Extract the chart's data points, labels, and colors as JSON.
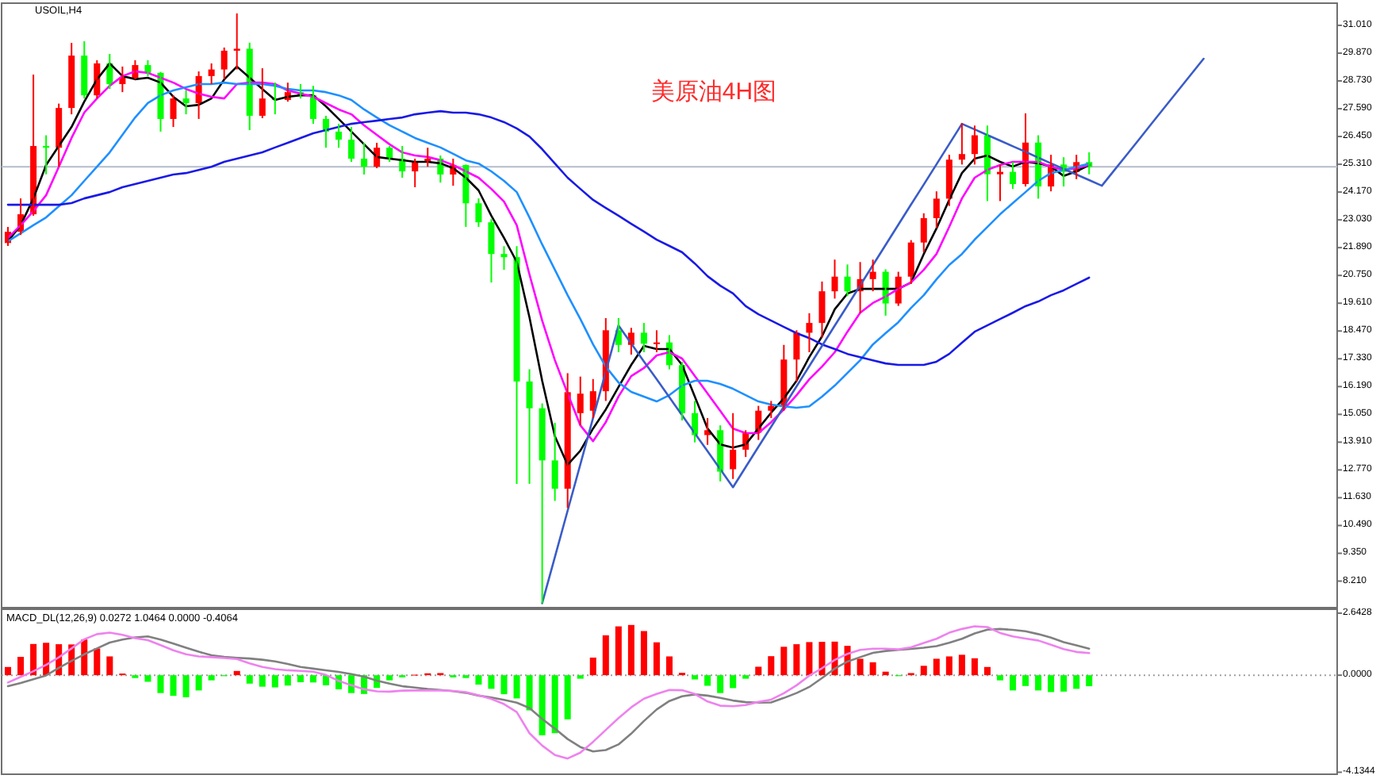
{
  "chart_data": [
    {
      "type": "candlestick",
      "title": "美原油4H图",
      "subtitle": "USOIL,H4",
      "categories": [
        null,
        null,
        null,
        null,
        null,
        null,
        null,
        null,
        null,
        null,
        null,
        null,
        null,
        null,
        null,
        null,
        null,
        null,
        null,
        null,
        null,
        null,
        null,
        null,
        null,
        null,
        null,
        null,
        null,
        null,
        null,
        null,
        null,
        null,
        null,
        null,
        null,
        null,
        null,
        null,
        null,
        null,
        null,
        null,
        null,
        null,
        null,
        null,
        null,
        null,
        null,
        null,
        null,
        null,
        null,
        null,
        null,
        null,
        null,
        null,
        null,
        null,
        null,
        null,
        null,
        null,
        null,
        null,
        null,
        null,
        null,
        null,
        null,
        null,
        null,
        null,
        null,
        null,
        null,
        null,
        null,
        null,
        null,
        null,
        null,
        null,
        null,
        null,
        null,
        null,
        null,
        null,
        null,
        null,
        null,
        null,
        null,
        null,
        null,
        null,
        null,
        null,
        null,
        null,
        null
      ],
      "ohlc": [
        [
          22.08,
          22.74,
          21.96,
          22.54
        ],
        [
          22.54,
          23.91,
          22.41,
          23.26
        ],
        [
          23.26,
          28.99,
          23.2,
          26.06
        ],
        [
          26.06,
          26.5,
          24.9,
          25.99
        ],
        [
          25.99,
          27.8,
          25.21,
          27.62
        ],
        [
          27.62,
          30.29,
          27.36,
          29.77
        ],
        [
          29.77,
          30.36,
          28.01,
          28.14
        ],
        [
          28.14,
          29.58,
          28.01,
          29.45
        ],
        [
          29.45,
          29.84,
          28.4,
          28.6
        ],
        [
          28.6,
          29.32,
          28.27,
          28.86
        ],
        [
          28.86,
          29.58,
          28.8,
          29.38
        ],
        [
          29.38,
          29.58,
          28.93,
          29.06
        ],
        [
          29.06,
          29.1,
          26.65,
          27.17
        ],
        [
          27.17,
          28.14,
          26.84,
          28.01
        ],
        [
          28.01,
          28.34,
          27.36,
          27.82
        ],
        [
          27.82,
          29.12,
          27.17,
          28.93
        ],
        [
          28.93,
          29.45,
          28.6,
          29.2
        ],
        [
          29.2,
          30.1,
          28.8,
          29.97
        ],
        [
          29.97,
          31.5,
          29.2,
          30.05
        ],
        [
          30.05,
          30.3,
          26.71,
          27.3
        ],
        [
          27.3,
          29.25,
          27.2,
          28.01
        ],
        [
          28.01,
          28.66,
          27.36,
          27.95
        ],
        [
          27.95,
          28.66,
          27.88,
          28.27
        ],
        [
          28.27,
          28.6,
          28.01,
          28.14
        ],
        [
          28.14,
          28.53,
          26.97,
          27.17
        ],
        [
          27.17,
          27.3,
          25.99,
          26.65
        ],
        [
          26.65,
          26.97,
          25.99,
          26.32
        ],
        [
          26.32,
          26.84,
          25.41,
          25.54
        ],
        [
          25.54,
          26.19,
          24.89,
          25.21
        ],
        [
          25.21,
          26.19,
          25.15,
          25.99
        ],
        [
          25.99,
          26.06,
          25.41,
          25.54
        ],
        [
          25.54,
          26.06,
          24.76,
          25.02
        ],
        [
          25.02,
          25.54,
          24.37,
          25.41
        ],
        [
          25.41,
          25.99,
          25.21,
          25.54
        ],
        [
          25.54,
          25.67,
          24.56,
          24.89
        ],
        [
          24.89,
          25.54,
          24.43,
          25.28
        ],
        [
          25.28,
          25.3,
          22.74,
          23.71
        ],
        [
          23.71,
          23.91,
          22.74,
          22.93
        ],
        [
          22.93,
          23.06,
          20.46,
          21.63
        ],
        [
          21.63,
          21.95,
          20.98,
          21.5
        ],
        [
          21.5,
          21.95,
          12.2,
          16.4
        ],
        [
          16.4,
          16.9,
          12.2,
          15.3
        ],
        [
          15.3,
          15.5,
          7.3,
          13.16
        ],
        [
          13.16,
          14.7,
          11.5,
          12.0
        ],
        [
          12.0,
          16.74,
          11.21,
          15.96
        ],
        [
          15.1,
          16.6,
          14.6,
          15.9
        ],
        [
          15.2,
          16.5,
          14.9,
          16.0
        ],
        [
          16.0,
          19.0,
          15.6,
          18.5
        ],
        [
          18.5,
          19.0,
          17.6,
          17.9
        ],
        [
          17.9,
          18.6,
          17.5,
          18.4
        ],
        [
          18.4,
          18.8,
          17.6,
          17.95
        ],
        [
          17.95,
          18.5,
          17.6,
          18.0
        ],
        [
          18.0,
          18.3,
          16.9,
          17.07
        ],
        [
          17.07,
          17.2,
          14.8,
          15.1
        ],
        [
          15.1,
          15.6,
          13.9,
          14.2
        ],
        [
          14.2,
          14.9,
          13.8,
          14.4
        ],
        [
          14.4,
          14.6,
          12.3,
          12.7
        ],
        [
          12.8,
          15.1,
          12.4,
          13.6
        ],
        [
          13.6,
          14.4,
          13.3,
          14.3
        ],
        [
          14.3,
          15.4,
          14.0,
          15.2
        ],
        [
          15.2,
          15.6,
          14.9,
          15.4
        ],
        [
          15.4,
          17.9,
          15.2,
          17.3
        ],
        [
          17.3,
          18.5,
          16.4,
          18.4
        ],
        [
          18.4,
          19.2,
          17.6,
          18.8
        ],
        [
          18.8,
          20.5,
          18.2,
          20.1
        ],
        [
          20.1,
          21.4,
          19.8,
          20.7
        ],
        [
          20.7,
          21.2,
          19.9,
          20.1
        ],
        [
          20.1,
          21.3,
          19.2,
          20.6
        ],
        [
          20.6,
          21.4,
          20.1,
          20.9
        ],
        [
          20.9,
          21.0,
          19.1,
          19.6
        ],
        [
          19.6,
          20.9,
          19.5,
          20.7
        ],
        [
          20.7,
          22.2,
          20.4,
          22.1
        ],
        [
          22.1,
          23.3,
          21.7,
          23.1
        ],
        [
          23.1,
          24.2,
          22.7,
          23.9
        ],
        [
          23.9,
          25.7,
          23.6,
          25.5
        ],
        [
          25.5,
          27.0,
          25.3,
          25.73
        ],
        [
          25.73,
          26.9,
          25.3,
          26.5
        ],
        [
          26.5,
          26.9,
          23.8,
          24.9
        ],
        [
          24.9,
          25.3,
          23.8,
          25.0
        ],
        [
          25.0,
          25.4,
          24.3,
          24.5
        ],
        [
          24.5,
          27.4,
          24.4,
          26.2
        ],
        [
          26.2,
          26.5,
          23.9,
          24.4
        ],
        [
          24.4,
          25.7,
          24.2,
          25.3
        ],
        [
          25.3,
          25.6,
          24.4,
          25.0
        ],
        [
          25.0,
          25.7,
          24.7,
          25.4
        ],
        [
          25.4,
          25.8,
          24.9,
          25.2
        ],
        null,
        null,
        null,
        null,
        null,
        null,
        null,
        null,
        null,
        null,
        null,
        null,
        null,
        null,
        null,
        null,
        null,
        null,
        null
      ],
      "colors": [
        "#ff0000",
        "#ff0000",
        "#ff0000",
        "#00ff00",
        "#ff0000",
        "#ff0000",
        "#00ff00",
        "#ff0000",
        "#00ff00",
        "#ff0000",
        "#ff0000",
        "#00ff00",
        "#00ff00",
        "#ff0000",
        "#00ff00",
        "#ff0000",
        "#ff0000",
        "#ff0000",
        "#ff0000",
        "#00ff00",
        "#ff0000",
        "#00ff00",
        "#ff0000",
        "#00ff00",
        "#00ff00",
        "#00ff00",
        "#00ff00",
        "#00ff00",
        "#00ff00",
        "#ff0000",
        "#00ff00",
        "#00ff00",
        "#ff0000",
        "#ff0000",
        "#00ff00",
        "#ff0000",
        "#00ff00",
        "#00ff00",
        "#00ff00",
        "#00ff00",
        "#00ff00",
        "#00ff00",
        "#00ff00",
        "#00ff00",
        "#ff0000",
        "#ff0000",
        "#ff0000",
        "#ff0000",
        "#00ff00",
        "#ff0000",
        "#00ff00",
        "#ff0000",
        "#00ff00",
        "#00ff00",
        "#00ff00",
        "#ff0000",
        "#00ff00",
        "#ff0000",
        "#ff0000",
        "#ff0000",
        "#ff0000",
        "#ff0000",
        "#ff0000",
        "#ff0000",
        "#ff0000",
        "#ff0000",
        "#00ff00",
        "#ff0000",
        "#ff0000",
        "#00ff00",
        "#ff0000",
        "#ff0000",
        "#ff0000",
        "#ff0000",
        "#ff0000",
        "#ff0000",
        "#ff0000",
        "#00ff00",
        "#ff0000",
        "#00ff00",
        "#ff0000",
        "#00ff00",
        "#ff0000",
        "#00ff00",
        "#ff0000",
        "#00ff00",
        null,
        null,
        null,
        null,
        null,
        null,
        null,
        null,
        null,
        null,
        null,
        null,
        null,
        null,
        null,
        null,
        null,
        null,
        null
      ],
      "series": [
        {
          "type": "line",
          "color": "#000000",
          "values": [
            22.15,
            22.81,
            23.91,
            25.28,
            26.06,
            26.84,
            27.88,
            28.79,
            29.45,
            28.93,
            28.8,
            28.86,
            28.66,
            28.08,
            27.69,
            27.75,
            28.01,
            28.79,
            29.32,
            28.86,
            28.4,
            27.95,
            28.08,
            28.14,
            28.14,
            27.69,
            27.17,
            26.65,
            26.13,
            25.61,
            25.54,
            25.48,
            25.41,
            25.41,
            25.35,
            25.15,
            24.76,
            24.24,
            23.2,
            22.29,
            21.31,
            19.03,
            16.43,
            14.15,
            12.98,
            13.56,
            14.47,
            15.25,
            16.17,
            17.08,
            17.86,
            17.73,
            17.73,
            17.08,
            15.78,
            14.47,
            13.82,
            13.69,
            13.82,
            14.47,
            15.12,
            15.71,
            16.43,
            17.4,
            18.25,
            19.36,
            20.01,
            20.2,
            20.2,
            20.2,
            20.2,
            20.46,
            21.63,
            22.68,
            23.85,
            24.95,
            25.54,
            25.67,
            25.41,
            25.22,
            25.41,
            25.35,
            25.22,
            24.83,
            25.02,
            25.28,
            null,
            null,
            null,
            null,
            null,
            null,
            null,
            null,
            null,
            null,
            null,
            null,
            null,
            null,
            null,
            null,
            null,
            null,
            null
          ]
        },
        {
          "type": "line",
          "color": "#ff00ff",
          "values": [
            22.29,
            22.81,
            23.39,
            24.04,
            25.21,
            26.39,
            27.43,
            28.01,
            28.53,
            28.93,
            29.12,
            29.06,
            28.86,
            28.66,
            28.4,
            28.21,
            28.08,
            28.01,
            28.6,
            28.66,
            28.66,
            28.6,
            28.34,
            28.21,
            28.08,
            27.82,
            27.56,
            27.36,
            26.91,
            26.52,
            26.13,
            25.8,
            25.67,
            25.61,
            25.48,
            25.28,
            25.02,
            24.76,
            24.3,
            23.78,
            22.81,
            20.79,
            18.9,
            17.27,
            15.91,
            14.6,
            13.95,
            14.73,
            15.78,
            16.62,
            16.95,
            17.47,
            17.6,
            17.34,
            16.62,
            15.91,
            15.19,
            14.47,
            14.28,
            14.28,
            14.73,
            15.25,
            15.84,
            16.49,
            17.01,
            17.6,
            18.44,
            19.22,
            19.62,
            19.88,
            20.2,
            20.46,
            20.98,
            21.63,
            22.74,
            23.91,
            24.76,
            25.08,
            25.28,
            25.41,
            25.41,
            25.41,
            25.21,
            25.08,
            25.15,
            25.28,
            null,
            null,
            null,
            null,
            null,
            null,
            null,
            null,
            null,
            null,
            null,
            null,
            null,
            null,
            null,
            null,
            null,
            null,
            null
          ]
        },
        {
          "type": "line",
          "color": "#1e90ff",
          "values": [
            22.15,
            22.48,
            22.81,
            23.13,
            23.59,
            24.04,
            24.63,
            25.21,
            25.8,
            26.52,
            27.23,
            27.82,
            28.14,
            28.34,
            28.47,
            28.6,
            28.6,
            28.66,
            28.6,
            28.6,
            28.6,
            28.53,
            28.4,
            28.34,
            28.34,
            28.27,
            28.14,
            27.95,
            27.56,
            27.23,
            26.91,
            26.65,
            26.39,
            26.19,
            26.0,
            25.74,
            25.47,
            25.34,
            25.02,
            24.63,
            24.17,
            23.13,
            22.02,
            20.98,
            19.94,
            18.96,
            17.92,
            17.01,
            16.36,
            15.97,
            15.78,
            15.58,
            15.84,
            16.23,
            16.43,
            16.43,
            16.3,
            16.1,
            15.84,
            15.58,
            15.45,
            15.38,
            15.32,
            15.38,
            15.78,
            16.23,
            16.75,
            17.27,
            17.92,
            18.38,
            18.83,
            19.42,
            19.94,
            20.59,
            21.18,
            21.63,
            22.22,
            22.74,
            23.26,
            23.72,
            24.17,
            24.63,
            24.95,
            25.08,
            25.21,
            25.34,
            null,
            null,
            null,
            null,
            null,
            null,
            null,
            null,
            null,
            null,
            null,
            null,
            null,
            null,
            null,
            null,
            null,
            null,
            null
          ]
        },
        {
          "type": "line",
          "color": "#1a1ae6",
          "values": [
            23.65,
            23.65,
            23.65,
            23.65,
            23.65,
            23.72,
            23.91,
            24.04,
            24.17,
            24.37,
            24.5,
            24.63,
            24.76,
            24.89,
            24.95,
            25.08,
            25.21,
            25.41,
            25.54,
            25.67,
            25.8,
            26.0,
            26.19,
            26.39,
            26.58,
            26.71,
            26.84,
            26.97,
            27.04,
            27.1,
            27.17,
            27.23,
            27.36,
            27.43,
            27.49,
            27.43,
            27.43,
            27.36,
            27.23,
            27.04,
            26.78,
            26.45,
            25.93,
            25.34,
            24.76,
            24.3,
            23.85,
            23.52,
            23.2,
            22.87,
            22.55,
            22.22,
            21.96,
            21.7,
            21.24,
            20.72,
            20.33,
            20.01,
            19.49,
            19.16,
            18.9,
            18.64,
            18.38,
            18.18,
            17.92,
            17.73,
            17.53,
            17.4,
            17.27,
            17.14,
            17.08,
            17.08,
            17.08,
            17.21,
            17.53,
            17.99,
            18.44,
            18.7,
            18.96,
            19.22,
            19.49,
            19.68,
            19.94,
            20.14,
            20.4,
            20.66,
            null,
            null,
            null,
            null,
            null,
            null,
            null,
            null,
            null,
            null,
            null,
            null,
            null,
            null,
            null,
            null,
            null,
            null,
            null
          ]
        },
        {
          "type": "line",
          "color": "#3a5cc8",
          "values": [
            null,
            null,
            null,
            null,
            null,
            null,
            null,
            null,
            null,
            null,
            null,
            null,
            null,
            null,
            null,
            null,
            null,
            null,
            null,
            null,
            null,
            null,
            null,
            null,
            null,
            null,
            null,
            null,
            null,
            null,
            null,
            null,
            null,
            null,
            null,
            null,
            null,
            null,
            null,
            null,
            null,
            null,
            7.3,
            9.2,
            11.1,
            13.0,
            14.9,
            16.8,
            18.7,
            17.96,
            17.22,
            16.49,
            15.75,
            15.01,
            14.27,
            13.54,
            12.8,
            12.06,
            12.89,
            13.72,
            14.54,
            15.37,
            16.2,
            17.03,
            17.86,
            18.69,
            19.51,
            20.34,
            21.17,
            22.0,
            22.83,
            23.66,
            24.48,
            25.31,
            26.14,
            26.97,
            26.74,
            26.51,
            26.28,
            26.05,
            25.82,
            25.58,
            25.35,
            25.12,
            24.89,
            24.66,
            24.43,
            25.08,
            25.73,
            26.38,
            27.04,
            27.69,
            28.34,
            28.99,
            29.64,
            null,
            null,
            null,
            null,
            null,
            null,
            null,
            null,
            null,
            null
          ]
        }
      ],
      "ylim": [
        7.12,
        31.92
      ],
      "yticks": [
        {
          "value": 8.21,
          "label": "8.210"
        },
        {
          "value": 9.35,
          "label": "9.350"
        },
        {
          "value": 10.49,
          "label": "10.490"
        },
        {
          "value": 11.63,
          "label": "11.630"
        },
        {
          "value": 12.77,
          "label": "12.770"
        },
        {
          "value": 13.91,
          "label": "13.910"
        },
        {
          "value": 15.05,
          "label": "15.050"
        },
        {
          "value": 16.19,
          "label": "16.190"
        },
        {
          "value": 17.33,
          "label": "17.330"
        },
        {
          "value": 18.47,
          "label": "18.470"
        },
        {
          "value": 19.61,
          "label": "19.610"
        },
        {
          "value": 20.75,
          "label": "20.750"
        },
        {
          "value": 21.89,
          "label": "21.890"
        },
        {
          "value": 23.03,
          "label": "23.030"
        },
        {
          "value": 24.17,
          "label": "24.170"
        },
        {
          "value": 25.31,
          "label": "25.310"
        },
        {
          "value": 26.45,
          "label": "26.450"
        },
        {
          "value": 27.59,
          "label": "27.590"
        },
        {
          "value": 28.73,
          "label": "28.730"
        },
        {
          "value": 29.87,
          "label": "29.870"
        },
        {
          "value": 31.01,
          "label": "31.010"
        }
      ],
      "ref_lines": [
        {
          "axis": "y",
          "value": 25.21,
          "color": "#b4bccb"
        }
      ],
      "tick_labels": "y"
    },
    {
      "type": "bar",
      "title": "MACD_DL(12,26,9) 0.0272 1.0464 0.0000 -0.4064",
      "categories": [
        null,
        null,
        null,
        null,
        null,
        null,
        null,
        null,
        null,
        null,
        null,
        null,
        null,
        null,
        null,
        null,
        null,
        null,
        null,
        null,
        null,
        null,
        null,
        null,
        null,
        null,
        null,
        null,
        null,
        null,
        null,
        null,
        null,
        null,
        null,
        null,
        null,
        null,
        null,
        null,
        null,
        null,
        null,
        null,
        null,
        null,
        null,
        null,
        null,
        null,
        null,
        null,
        null,
        null,
        null,
        null,
        null,
        null,
        null,
        null,
        null,
        null,
        null,
        null,
        null,
        null,
        null,
        null,
        null,
        null,
        null,
        null,
        null,
        null,
        null,
        null,
        null,
        null,
        null,
        null,
        null,
        null,
        null,
        null,
        null,
        null,
        null,
        null,
        null,
        null,
        null,
        null,
        null,
        null,
        null,
        null,
        null,
        null,
        null,
        null,
        null,
        null,
        null,
        null,
        null
      ],
      "series": [
        {
          "type": "bar",
          "values": [
            0.35,
            0.78,
            1.33,
            1.38,
            1.32,
            1.31,
            1.52,
            1.14,
            0.8,
            0.07,
            -0.12,
            -0.28,
            -0.76,
            -0.88,
            -0.94,
            -0.65,
            -0.22,
            -0.04,
            0.18,
            -0.36,
            -0.49,
            -0.52,
            -0.44,
            -0.3,
            -0.31,
            -0.43,
            -0.6,
            -0.76,
            -0.8,
            -0.54,
            -0.22,
            -0.09,
            0.02,
            0.08,
            0.09,
            -0.09,
            -0.12,
            -0.4,
            -0.58,
            -0.81,
            -0.99,
            -1.5,
            -2.56,
            -2.47,
            -1.88,
            -0.15,
            0.75,
            1.7,
            2.08,
            2.14,
            1.88,
            1.4,
            0.8,
            0.1,
            -0.18,
            -0.45,
            -0.76,
            -0.55,
            -0.15,
            0.36,
            0.81,
            1.21,
            1.32,
            1.41,
            1.42,
            1.43,
            1.25,
            0.7,
            0.55,
            0.15,
            -0.04,
            0.09,
            0.4,
            0.7,
            0.8,
            0.87,
            0.72,
            0.35,
            -0.22,
            -0.65,
            -0.46,
            -0.65,
            -0.72,
            -0.7,
            -0.58,
            -0.47,
            null,
            null,
            null,
            null,
            null,
            null,
            null,
            null,
            null,
            null,
            null,
            null,
            null,
            null,
            null,
            null,
            null,
            null,
            null
          ],
          "colors": [
            "#ff0000",
            "#ff0000",
            "#ff0000",
            "#ff0000",
            "#ff0000",
            "#ff0000",
            "#ff0000",
            "#ff0000",
            "#ff0000",
            "#ff0000",
            "#00ff00",
            "#00ff00",
            "#00ff00",
            "#00ff00",
            "#00ff00",
            "#00ff00",
            "#00ff00",
            "#00ff00",
            "#ff0000",
            "#00ff00",
            "#00ff00",
            "#00ff00",
            "#00ff00",
            "#00ff00",
            "#00ff00",
            "#00ff00",
            "#00ff00",
            "#00ff00",
            "#00ff00",
            "#00ff00",
            "#00ff00",
            "#00ff00",
            "#ff0000",
            "#ff0000",
            "#ff0000",
            "#00ff00",
            "#00ff00",
            "#00ff00",
            "#00ff00",
            "#00ff00",
            "#00ff00",
            "#00ff00",
            "#00ff00",
            "#00ff00",
            "#00ff00",
            "#00ff00",
            "#ff0000",
            "#ff0000",
            "#ff0000",
            "#ff0000",
            "#ff0000",
            "#ff0000",
            "#ff0000",
            "#ff0000",
            "#00ff00",
            "#00ff00",
            "#00ff00",
            "#00ff00",
            "#00ff00",
            "#ff0000",
            "#ff0000",
            "#ff0000",
            "#ff0000",
            "#ff0000",
            "#ff0000",
            "#ff0000",
            "#ff0000",
            "#ff0000",
            "#ff0000",
            "#ff0000",
            "#00ff00",
            "#ff0000",
            "#ff0000",
            "#ff0000",
            "#ff0000",
            "#ff0000",
            "#ff0000",
            "#ff0000",
            "#00ff00",
            "#00ff00",
            "#00ff00",
            "#00ff00",
            "#00ff00",
            "#00ff00",
            "#00ff00",
            "#00ff00",
            null,
            null,
            null,
            null,
            null,
            null,
            null,
            null,
            null,
            null,
            null,
            null,
            null,
            null,
            null,
            null,
            null,
            null,
            null
          ]
        },
        {
          "type": "line",
          "color": "#808080",
          "values": [
            -0.47,
            -0.33,
            -0.17,
            -0.01,
            0.31,
            0.61,
            0.89,
            1.14,
            1.39,
            1.52,
            1.61,
            1.65,
            1.52,
            1.35,
            1.17,
            1.0,
            0.85,
            0.78,
            0.74,
            0.71,
            0.66,
            0.59,
            0.48,
            0.35,
            0.28,
            0.21,
            0.14,
            0.05,
            -0.06,
            -0.23,
            -0.36,
            -0.47,
            -0.53,
            -0.59,
            -0.63,
            -0.68,
            -0.75,
            -0.87,
            -0.95,
            -1.05,
            -1.17,
            -1.4,
            -1.86,
            -2.28,
            -2.72,
            -3.06,
            -3.25,
            -3.19,
            -2.95,
            -2.49,
            -1.95,
            -1.46,
            -1.1,
            -0.9,
            -0.82,
            -0.87,
            -0.97,
            -1.08,
            -1.15,
            -1.17,
            -1.16,
            -0.97,
            -0.76,
            -0.5,
            -0.12,
            0.28,
            0.58,
            0.77,
            0.95,
            1.03,
            1.08,
            1.12,
            1.17,
            1.24,
            1.38,
            1.55,
            1.78,
            1.94,
            1.97,
            1.93,
            1.87,
            1.75,
            1.6,
            1.41,
            1.27,
            1.13,
            null,
            null,
            null,
            null,
            null,
            null,
            null,
            null,
            null,
            null,
            null,
            null,
            null,
            null,
            null,
            null,
            null,
            null,
            null
          ]
        },
        {
          "type": "line",
          "color": "#ee82ee",
          "values": [
            -0.31,
            -0.07,
            0.17,
            0.44,
            0.76,
            1.14,
            1.53,
            1.75,
            1.81,
            1.72,
            1.58,
            1.49,
            1.28,
            1.06,
            0.89,
            0.8,
            0.77,
            0.73,
            0.69,
            0.5,
            0.35,
            0.26,
            0.21,
            0.18,
            0.15,
            0.01,
            -0.24,
            -0.43,
            -0.6,
            -0.69,
            -0.7,
            -0.66,
            -0.65,
            -0.65,
            -0.65,
            -0.67,
            -0.72,
            -0.86,
            -1.01,
            -1.23,
            -1.57,
            -2.47,
            -3.0,
            -3.4,
            -3.55,
            -3.3,
            -2.84,
            -2.33,
            -1.83,
            -1.37,
            -1.0,
            -0.8,
            -0.63,
            -0.64,
            -0.8,
            -1.12,
            -1.3,
            -1.32,
            -1.27,
            -1.14,
            -1.04,
            -0.77,
            -0.43,
            -0.02,
            0.3,
            0.65,
            0.91,
            1.08,
            1.13,
            1.13,
            1.1,
            1.19,
            1.37,
            1.55,
            1.81,
            1.97,
            2.08,
            2.05,
            1.8,
            1.65,
            1.56,
            1.48,
            1.3,
            1.11,
            0.99,
            0.94,
            null,
            null,
            null,
            null,
            null,
            null,
            null,
            null,
            null,
            null,
            null,
            null,
            null,
            null,
            null,
            null,
            null,
            null,
            null
          ]
        }
      ],
      "ylim": [
        -4.22,
        2.81
      ],
      "yticks": [
        {
          "value": -4.1344,
          "label": "-4.1344"
        },
        {
          "value": 0,
          "label": "0.0000"
        },
        {
          "value": 2.6428,
          "label": "2.6428"
        }
      ],
      "ref_lines": [
        {
          "axis": "y",
          "value": 0,
          "color": "#a0a0a0",
          "line_style": "dotted"
        }
      ],
      "tick_labels": "y"
    }
  ]
}
